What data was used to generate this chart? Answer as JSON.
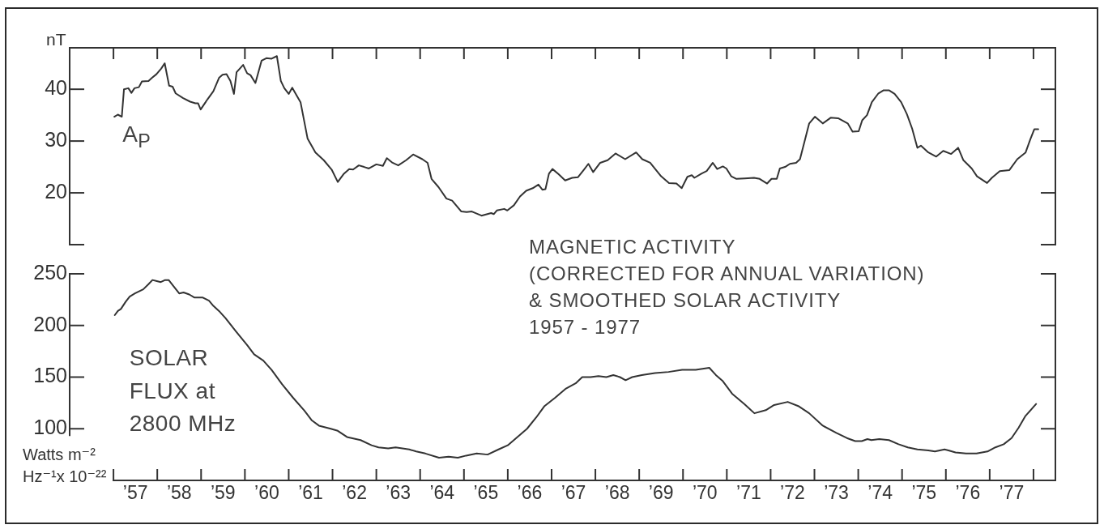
{
  "chart_data": [
    {
      "type": "line",
      "title": "MAGNETIC ACTIVITY\n(CORRECTED FOR ANNUAL VARIATION)\n& SMOOTHED SOLAR ACTIVITY\n1957 - 1977",
      "ylabel": "nT",
      "series": [
        {
          "name": "A$_{P}$",
          "color": "#333333",
          "x": [
            56.52,
            56.6,
            56.69,
            56.74,
            56.84,
            56.91,
            56.98,
            57.08,
            57.15,
            57.3,
            57.38,
            57.48,
            57.59,
            57.67,
            57.77,
            57.85,
            57.92,
            58.09,
            58.25,
            58.37,
            58.43,
            58.49,
            58.65,
            58.78,
            58.91,
            58.99,
            59.08,
            59.17,
            59.25,
            59.31,
            59.46,
            59.55,
            59.63,
            59.74,
            59.88,
            59.99,
            60.11,
            60.23,
            60.32,
            60.4,
            60.5,
            60.58,
            60.68,
            60.77,
            60.93,
            61.11,
            61.3,
            61.48,
            61.62,
            61.76,
            61.88,
            61.97,
            62.1,
            62.22,
            62.33,
            62.5,
            62.65,
            62.74,
            62.87,
            63.0,
            63.18,
            63.34,
            63.55,
            63.67,
            63.76,
            63.92,
            64.1,
            64.23,
            64.44,
            64.56,
            64.68,
            64.9,
            65.12,
            65.18,
            65.25,
            65.42,
            65.49,
            65.64,
            65.78,
            65.92,
            66.07,
            66.2,
            66.29,
            66.36,
            66.44,
            66.52,
            66.66,
            66.81,
            66.97,
            67.1,
            67.24,
            67.34,
            67.45,
            67.61,
            67.78,
            67.96,
            68.18,
            68.43,
            68.57,
            68.75,
            69.0,
            69.18,
            69.35,
            69.47,
            69.6,
            69.7,
            69.76,
            69.92,
            70.04,
            70.18,
            70.28,
            70.41,
            70.49,
            70.6,
            70.72,
            70.91,
            71.12,
            71.25,
            71.42,
            71.52,
            71.64,
            71.71,
            71.83,
            71.94,
            72.08,
            72.17,
            72.27,
            72.38,
            72.51,
            72.69,
            72.87,
            73.04,
            73.26,
            73.37,
            73.51,
            73.59,
            73.7,
            73.81,
            73.96,
            74.08,
            74.2,
            74.33,
            74.48,
            74.61,
            74.73,
            74.85,
            74.93,
            75.1,
            75.28,
            75.44,
            75.62,
            75.78,
            75.9,
            76.09,
            76.21,
            76.44,
            76.55,
            76.73,
            76.95,
            77.13,
            77.32,
            77.43,
            77.52,
            77.61
          ],
          "values": [
            34.7,
            35.1,
            34.7,
            40.0,
            40.2,
            39.3,
            40.2,
            40.4,
            41.5,
            41.6,
            42.2,
            42.9,
            44.0,
            45.0,
            40.7,
            40.5,
            39.2,
            38.3,
            37.6,
            37.3,
            37.3,
            36.1,
            38.1,
            39.6,
            42.2,
            42.8,
            42.9,
            41.6,
            39.1,
            43.3,
            44.7,
            43.1,
            42.7,
            41.2,
            45.5,
            46.0,
            45.9,
            46.4,
            41.6,
            40.2,
            39.1,
            40.3,
            38.8,
            37.5,
            30.5,
            27.8,
            26.3,
            24.5,
            22.1,
            23.7,
            24.6,
            24.5,
            25.3,
            25.0,
            24.7,
            25.5,
            25.2,
            26.7,
            25.8,
            25.3,
            26.3,
            27.4,
            26.5,
            25.8,
            22.7,
            21.1,
            18.9,
            18.5,
            16.4,
            16.3,
            16.4,
            15.6,
            16.1,
            15.9,
            16.6,
            16.9,
            16.6,
            17.6,
            19.3,
            20.4,
            20.9,
            21.6,
            20.6,
            20.7,
            23.7,
            24.6,
            23.6,
            22.4,
            22.9,
            23.0,
            24.5,
            25.6,
            24.0,
            25.8,
            26.3,
            27.6,
            26.5,
            27.8,
            26.5,
            25.8,
            23.2,
            21.9,
            21.8,
            20.9,
            23.1,
            23.4,
            22.9,
            23.7,
            24.2,
            25.8,
            24.6,
            25.1,
            24.7,
            23.2,
            22.7,
            22.8,
            22.9,
            22.7,
            21.8,
            22.7,
            22.7,
            24.7,
            25.0,
            25.6,
            25.8,
            26.5,
            29.8,
            33.4,
            34.7,
            33.4,
            34.5,
            34.4,
            33.4,
            31.8,
            31.9,
            34.0,
            35.0,
            37.5,
            39.2,
            39.8,
            39.8,
            39.1,
            37.5,
            35.2,
            32.4,
            28.7,
            29.1,
            27.8,
            27.0,
            28.1,
            27.5,
            28.7,
            26.3,
            24.7,
            23.2,
            21.9,
            22.9,
            24.2,
            24.4,
            26.5,
            27.8,
            30.4,
            32.3,
            32.3
          ]
        }
      ],
      "xlim": [
        55.5,
        78
      ],
      "ylim": [
        10,
        48
      ],
      "yticks": [
        20,
        30,
        40
      ],
      "tick_labels": "y"
    },
    {
      "type": "line",
      "ylabel": "Watts m⁻²\nHz⁻¹x 10⁻²²",
      "series": [
        {
          "name": "SOLAR\nFLUX at\n2800 MHz",
          "color": "#333333",
          "x": [
            56.53,
            56.6,
            56.67,
            56.78,
            56.87,
            56.99,
            57.18,
            57.3,
            57.39,
            57.49,
            57.58,
            57.68,
            57.76,
            57.89,
            58.0,
            58.1,
            58.23,
            58.35,
            58.54,
            58.68,
            58.78,
            58.91,
            59.06,
            59.3,
            59.55,
            59.71,
            59.92,
            60.11,
            60.35,
            60.6,
            60.85,
            61.03,
            61.19,
            61.46,
            61.62,
            61.83,
            62.14,
            62.39,
            62.55,
            62.77,
            62.94,
            63.25,
            63.41,
            63.62,
            63.93,
            64.15,
            64.36,
            64.55,
            64.79,
            65.04,
            65.29,
            65.5,
            65.72,
            65.94,
            66.15,
            66.34,
            66.58,
            66.83,
            67.05,
            67.2,
            67.39,
            67.57,
            67.75,
            67.91,
            68.06,
            68.19,
            68.34,
            68.56,
            68.86,
            69.17,
            69.48,
            69.79,
            70.1,
            70.25,
            70.41,
            70.62,
            70.9,
            71.13,
            71.39,
            71.58,
            71.89,
            72.13,
            72.38,
            72.69,
            73.0,
            73.24,
            73.43,
            73.58,
            73.71,
            73.8,
            73.98,
            74.2,
            74.42,
            74.63,
            74.85,
            75.1,
            75.25,
            75.47,
            75.56,
            75.72,
            75.96,
            76.2,
            76.45,
            76.63,
            76.82,
            77.0,
            77.16,
            77.31,
            77.56
          ],
          "values": [
            210,
            214,
            216,
            223,
            228,
            231,
            235,
            240,
            244,
            243,
            242,
            244,
            244,
            237,
            231,
            232,
            230,
            227,
            227,
            224,
            219,
            214,
            207,
            194,
            181,
            172,
            166,
            157,
            143,
            130,
            118,
            108,
            103,
            100,
            98,
            92,
            89,
            84,
            82,
            81,
            82,
            80,
            78,
            76,
            72,
            73,
            72,
            74,
            76,
            75,
            80,
            84,
            92,
            100,
            111,
            122,
            130,
            139,
            144,
            150,
            150,
            151,
            150,
            152,
            150,
            147,
            150,
            152,
            154,
            155,
            157,
            157,
            159,
            152,
            146,
            134,
            124,
            115,
            118,
            123,
            126,
            122,
            115,
            103,
            96,
            91,
            88,
            88,
            90,
            89,
            90,
            89,
            85,
            82,
            80,
            79,
            78,
            80,
            79,
            77,
            76,
            76,
            78,
            82,
            85,
            91,
            101,
            112,
            124
          ]
        }
      ],
      "xlim": [
        55.5,
        78
      ],
      "xticks": [
        {
          "value": 56.5,
          "label": null
        },
        {
          "value": 57,
          "label": "’57"
        },
        {
          "value": 57.5,
          "label": null
        },
        {
          "value": 58,
          "label": "’58"
        },
        {
          "value": 58.5,
          "label": null
        },
        {
          "value": 59,
          "label": "’59"
        },
        {
          "value": 59.5,
          "label": null
        },
        {
          "value": 60,
          "label": "’60"
        },
        {
          "value": 60.5,
          "label": null
        },
        {
          "value": 61,
          "label": "’61"
        },
        {
          "value": 61.5,
          "label": null
        },
        {
          "value": 62,
          "label": "’62"
        },
        {
          "value": 62.5,
          "label": null
        },
        {
          "value": 63,
          "label": "’63"
        },
        {
          "value": 63.5,
          "label": null
        },
        {
          "value": 64,
          "label": "’64"
        },
        {
          "value": 64.5,
          "label": null
        },
        {
          "value": 65,
          "label": "’65"
        },
        {
          "value": 65.5,
          "label": null
        },
        {
          "value": 66,
          "label": "’66"
        },
        {
          "value": 66.5,
          "label": null
        },
        {
          "value": 67,
          "label": "’67"
        },
        {
          "value": 67.5,
          "label": null
        },
        {
          "value": 68,
          "label": "’68"
        },
        {
          "value": 68.5,
          "label": null
        },
        {
          "value": 69,
          "label": "’69"
        },
        {
          "value": 69.5,
          "label": null
        },
        {
          "value": 70,
          "label": "’70"
        },
        {
          "value": 70.5,
          "label": null
        },
        {
          "value": 71,
          "label": "’71"
        },
        {
          "value": 71.5,
          "label": null
        },
        {
          "value": 72,
          "label": "’72"
        },
        {
          "value": 72.5,
          "label": null
        },
        {
          "value": 73,
          "label": "’73"
        },
        {
          "value": 73.5,
          "label": null
        },
        {
          "value": 74,
          "label": "’74"
        },
        {
          "value": 74.5,
          "label": null
        },
        {
          "value": 75,
          "label": "’75"
        },
        {
          "value": 75.5,
          "label": null
        },
        {
          "value": 76,
          "label": "’76"
        },
        {
          "value": 76.5,
          "label": null
        },
        {
          "value": 77,
          "label": "’77"
        },
        {
          "value": 77.5,
          "label": null
        }
      ],
      "ylim": [
        50,
        250
      ],
      "yticks": [
        100,
        150,
        200,
        250
      ]
    }
  ]
}
